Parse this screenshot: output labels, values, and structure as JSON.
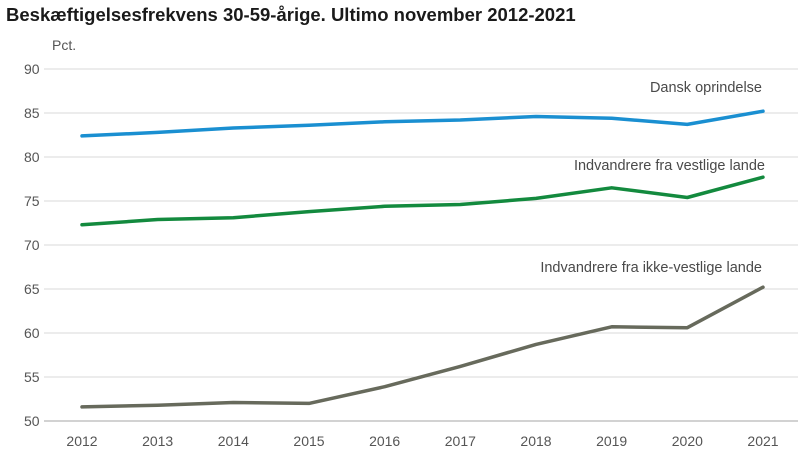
{
  "chart_data": {
    "type": "line",
    "title": "Beskæftigelsesfrekvens 30-59-årige. Ultimo november 2012-2021",
    "unit_label": "Pct.",
    "x": [
      "2012",
      "2013",
      "2014",
      "2015",
      "2016",
      "2017",
      "2018",
      "2019",
      "2020",
      "2021"
    ],
    "ylim": [
      50,
      90
    ],
    "yticks": [
      "50",
      "55",
      "60",
      "65",
      "70",
      "75",
      "80",
      "85",
      "90"
    ],
    "grid": true,
    "series": [
      {
        "name": "Dansk oprindelse",
        "color": "#1a8fd1",
        "values": [
          82.4,
          82.8,
          83.3,
          83.6,
          84.0,
          84.2,
          84.6,
          84.4,
          83.7,
          85.2
        ]
      },
      {
        "name": "Indvandrere fra vestlige lande",
        "color": "#138a3e",
        "values": [
          72.3,
          72.9,
          73.1,
          73.8,
          74.4,
          74.6,
          75.3,
          76.5,
          75.4,
          77.7
        ]
      },
      {
        "name": "Indvandrere fra ikke-vestlige lande",
        "color": "#676a5c",
        "values": [
          51.6,
          51.8,
          52.1,
          52.0,
          53.9,
          56.2,
          58.7,
          60.7,
          60.6,
          65.2
        ]
      }
    ]
  }
}
